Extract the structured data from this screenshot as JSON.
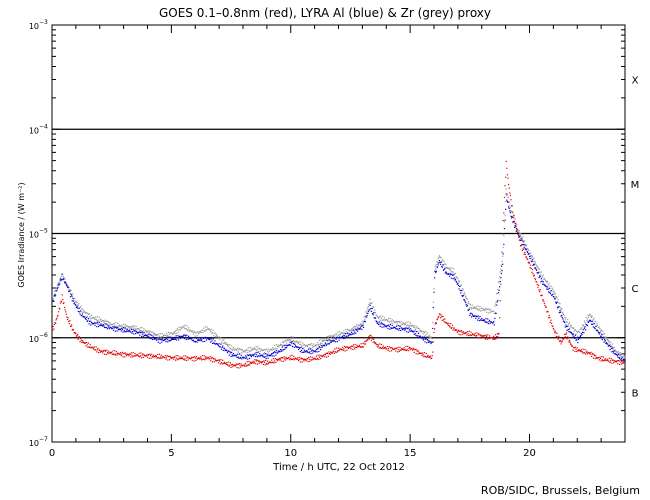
{
  "chart_data": {
    "type": "scatter",
    "title": "GOES 0.1–0.8nm (red), LYRA Al (blue) & Zr (grey) proxy",
    "xlabel": "Time / h UTC, 22 Oct 2012",
    "ylabel": "GOES Irradiance / (W m⁻²)",
    "xlim": [
      0,
      24
    ],
    "ylim": [
      1e-07,
      0.001
    ],
    "yscale": "log",
    "x_ticks": [
      0,
      5,
      10,
      15,
      20
    ],
    "x_tick_labels": [
      "0",
      "5",
      "10",
      "15",
      "20"
    ],
    "y_ticks": [
      1e-07,
      1e-06,
      1e-05,
      0.0001,
      0.001
    ],
    "y_tick_labels": [
      {
        "base": "10",
        "exp": "−7"
      },
      {
        "base": "10",
        "exp": "−6"
      },
      {
        "base": "10",
        "exp": "−5"
      },
      {
        "base": "10",
        "exp": "−4"
      },
      {
        "base": "10",
        "exp": "−3"
      }
    ],
    "flare_class_lines": [
      1e-06,
      1e-05,
      0.0001
    ],
    "flare_classes": [
      {
        "label": "X",
        "level": 0.0003
      },
      {
        "label": "M",
        "level": 3e-05
      },
      {
        "label": "C",
        "level": 3e-06
      },
      {
        "label": "B",
        "level": 3e-07
      }
    ],
    "series": [
      {
        "color": "#e00000",
        "points": [
          [
            0.0,
            1.2e-06
          ],
          [
            0.2,
            1.6e-06
          ],
          [
            0.4,
            2.5e-06
          ],
          [
            0.6,
            1.6e-06
          ],
          [
            0.9,
            1.15e-06
          ],
          [
            1.2,
            9.5e-07
          ],
          [
            1.5,
            8.5e-07
          ],
          [
            2.0,
            7.5e-07
          ],
          [
            3.0,
            7e-07
          ],
          [
            4.0,
            6.8e-07
          ],
          [
            5.0,
            6.5e-07
          ],
          [
            6.0,
            6.4e-07
          ],
          [
            6.5,
            6.5e-07
          ],
          [
            7.0,
            6e-07
          ],
          [
            7.5,
            5.5e-07
          ],
          [
            8.0,
            5.5e-07
          ],
          [
            8.5,
            6e-07
          ],
          [
            9.0,
            5.8e-07
          ],
          [
            9.5,
            6.3e-07
          ],
          [
            10.0,
            6.5e-07
          ],
          [
            10.5,
            6.2e-07
          ],
          [
            11.0,
            6.4e-07
          ],
          [
            11.5,
            7e-07
          ],
          [
            12.0,
            7.8e-07
          ],
          [
            12.5,
            8.2e-07
          ],
          [
            13.0,
            8.5e-07
          ],
          [
            13.3,
            1.05e-06
          ],
          [
            13.6,
            8.5e-07
          ],
          [
            14.0,
            8e-07
          ],
          [
            14.5,
            7.8e-07
          ],
          [
            15.0,
            8e-07
          ],
          [
            15.5,
            7e-07
          ],
          [
            15.9,
            6.5e-07
          ],
          [
            16.0,
            1.3e-06
          ],
          [
            16.2,
            1.7e-06
          ],
          [
            16.5,
            1.4e-06
          ],
          [
            17.0,
            1.15e-06
          ],
          [
            17.5,
            1.1e-06
          ],
          [
            18.0,
            1.05e-06
          ],
          [
            18.5,
            1e-06
          ],
          [
            18.7,
            1.1e-06
          ],
          [
            18.85,
            1e-05
          ],
          [
            19.0,
            4.8e-05
          ],
          [
            19.1,
            3e-05
          ],
          [
            19.3,
            1.5e-05
          ],
          [
            19.6,
            8e-06
          ],
          [
            20.0,
            5e-06
          ],
          [
            20.5,
            2.5e-06
          ],
          [
            21.0,
            1.2e-06
          ],
          [
            21.3,
            9e-07
          ],
          [
            21.5,
            1.1e-06
          ],
          [
            21.8,
            8e-07
          ],
          [
            22.2,
            7.5e-07
          ],
          [
            22.5,
            7.2e-07
          ],
          [
            22.8,
            6.5e-07
          ],
          [
            23.2,
            6.2e-07
          ],
          [
            23.6,
            6e-07
          ],
          [
            24.0,
            5.8e-07
          ]
        ]
      },
      {
        "color": "#0000d0",
        "points": [
          [
            0.0,
            2.2e-06
          ],
          [
            0.2,
            3e-06
          ],
          [
            0.4,
            3.9e-06
          ],
          [
            0.6,
            3.2e-06
          ],
          [
            0.9,
            2.2e-06
          ],
          [
            1.2,
            1.7e-06
          ],
          [
            1.6,
            1.4e-06
          ],
          [
            2.0,
            1.35e-06
          ],
          [
            2.5,
            1.25e-06
          ],
          [
            3.0,
            1.2e-06
          ],
          [
            3.5,
            1.15e-06
          ],
          [
            4.0,
            1.05e-06
          ],
          [
            4.5,
            9.5e-07
          ],
          [
            5.0,
            9.8e-07
          ],
          [
            5.5,
            1.05e-06
          ],
          [
            6.0,
            9.5e-07
          ],
          [
            6.5,
            1e-06
          ],
          [
            7.0,
            8.5e-07
          ],
          [
            7.5,
            7e-07
          ],
          [
            8.0,
            6.5e-07
          ],
          [
            8.5,
            7e-07
          ],
          [
            9.0,
            6.7e-07
          ],
          [
            9.5,
            7.5e-07
          ],
          [
            10.0,
            9e-07
          ],
          [
            10.5,
            7.5e-07
          ],
          [
            11.0,
            7.5e-07
          ],
          [
            11.5,
            9e-07
          ],
          [
            12.0,
            1e-06
          ],
          [
            12.5,
            1.1e-06
          ],
          [
            13.0,
            1.3e-06
          ],
          [
            13.3,
            2e-06
          ],
          [
            13.6,
            1.4e-06
          ],
          [
            14.0,
            1.3e-06
          ],
          [
            14.5,
            1.25e-06
          ],
          [
            15.0,
            1.2e-06
          ],
          [
            15.5,
            1e-06
          ],
          [
            15.9,
            9e-07
          ],
          [
            16.0,
            4e-06
          ],
          [
            16.2,
            5.5e-06
          ],
          [
            16.5,
            4.2e-06
          ],
          [
            16.8,
            3.9e-06
          ],
          [
            17.0,
            3.2e-06
          ],
          [
            17.5,
            1.7e-06
          ],
          [
            18.0,
            1.5e-06
          ],
          [
            18.5,
            1.4e-06
          ],
          [
            18.85,
            5e-06
          ],
          [
            19.0,
            2.3e-05
          ],
          [
            19.2,
            1.5e-05
          ],
          [
            19.5,
            1e-05
          ],
          [
            20.0,
            6e-06
          ],
          [
            20.5,
            3.5e-06
          ],
          [
            21.0,
            2.5e-06
          ],
          [
            21.5,
            1.3e-06
          ],
          [
            22.0,
            9.5e-07
          ],
          [
            22.5,
            1.5e-06
          ],
          [
            22.8,
            1.2e-06
          ],
          [
            23.2,
            9e-07
          ],
          [
            23.6,
            7e-07
          ],
          [
            24.0,
            6e-07
          ]
        ]
      },
      {
        "color": "#999999",
        "points": [
          [
            0.0,
            2.4e-06
          ],
          [
            0.2,
            3.2e-06
          ],
          [
            0.4,
            4e-06
          ],
          [
            0.6,
            3.3e-06
          ],
          [
            0.9,
            2.4e-06
          ],
          [
            1.2,
            1.9e-06
          ],
          [
            1.6,
            1.6e-06
          ],
          [
            2.0,
            1.5e-06
          ],
          [
            2.5,
            1.35e-06
          ],
          [
            3.0,
            1.3e-06
          ],
          [
            3.5,
            1.25e-06
          ],
          [
            4.0,
            1.15e-06
          ],
          [
            4.5,
            1.05e-06
          ],
          [
            5.0,
            1.1e-06
          ],
          [
            5.5,
            1.3e-06
          ],
          [
            6.0,
            1.1e-06
          ],
          [
            6.5,
            1.25e-06
          ],
          [
            7.0,
            1e-06
          ],
          [
            7.5,
            8e-07
          ],
          [
            8.0,
            7.5e-07
          ],
          [
            8.5,
            8e-07
          ],
          [
            9.0,
            7.5e-07
          ],
          [
            9.5,
            8.5e-07
          ],
          [
            10.0,
            1e-06
          ],
          [
            10.5,
            8.5e-07
          ],
          [
            11.0,
            8.5e-07
          ],
          [
            11.5,
            1e-06
          ],
          [
            12.0,
            1.1e-06
          ],
          [
            12.5,
            1.2e-06
          ],
          [
            13.0,
            1.4e-06
          ],
          [
            13.3,
            2.3e-06
          ],
          [
            13.6,
            1.6e-06
          ],
          [
            14.0,
            1.5e-06
          ],
          [
            14.5,
            1.4e-06
          ],
          [
            15.0,
            1.35e-06
          ],
          [
            15.5,
            1.15e-06
          ],
          [
            15.9,
            1e-06
          ],
          [
            16.0,
            4.5e-06
          ],
          [
            16.2,
            6.2e-06
          ],
          [
            16.5,
            4.8e-06
          ],
          [
            16.8,
            4.4e-06
          ],
          [
            17.0,
            3.6e-06
          ],
          [
            17.5,
            2e-06
          ],
          [
            18.0,
            1.9e-06
          ],
          [
            18.5,
            1.8e-06
          ],
          [
            18.85,
            6e-06
          ],
          [
            19.0,
            2.6e-05
          ],
          [
            19.2,
            1.7e-05
          ],
          [
            19.5,
            1.1e-05
          ],
          [
            20.0,
            6.5e-06
          ],
          [
            20.5,
            4e-06
          ],
          [
            21.0,
            2.8e-06
          ],
          [
            21.5,
            1.5e-06
          ],
          [
            22.0,
            1.1e-06
          ],
          [
            22.5,
            1.7e-06
          ],
          [
            22.8,
            1.35e-06
          ],
          [
            23.2,
            1e-06
          ],
          [
            23.6,
            7.5e-07
          ],
          [
            24.0,
            6.5e-07
          ]
        ]
      }
    ]
  },
  "footer": {
    "credit": "ROB/SIDC, Brussels, Belgium"
  }
}
